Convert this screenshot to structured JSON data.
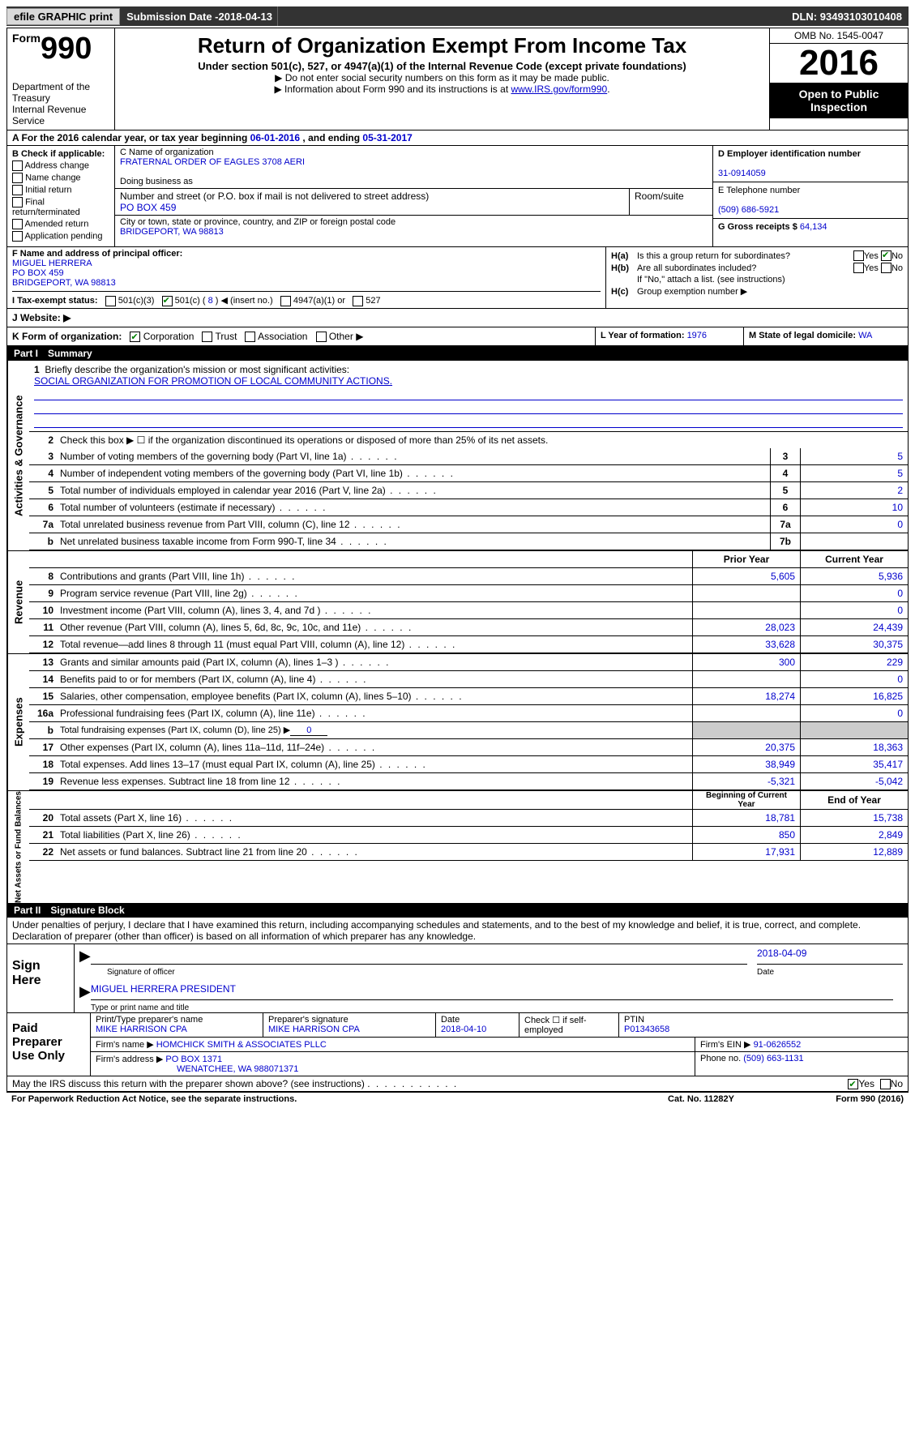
{
  "topbar": {
    "efile": "efile GRAPHIC print",
    "submission_label": "Submission Date - ",
    "submission_date": "2018-04-13",
    "dln_label": "DLN: ",
    "dln": "93493103010408"
  },
  "header": {
    "form_label": "Form",
    "form_num": "990",
    "dept": "Department of the Treasury\nInternal Revenue Service",
    "title": "Return of Organization Exempt From Income Tax",
    "sub": "Under section 501(c), 527, or 4947(a)(1) of the Internal Revenue Code (except private foundations)",
    "note1": "▶ Do not enter social security numbers on this form as it may be made public.",
    "note2": "▶ Information about Form 990 and its instructions is at ",
    "note2_link": "www.IRS.gov/form990",
    "omb": "OMB No. 1545-0047",
    "year": "2016",
    "open": "Open to Public Inspection"
  },
  "row_a": {
    "text": "A For the 2016 calendar year, or tax year beginning ",
    "begin": "06-01-2016",
    "mid": " , and ending ",
    "end": "05-31-2017"
  },
  "col_b": {
    "hdr": "B Check if applicable:",
    "items": [
      "Address change",
      "Name change",
      "Initial return",
      "Final return/terminated",
      "Amended return",
      "Application pending"
    ]
  },
  "col_c": {
    "name_label": "C Name of organization",
    "name": "FRATERNAL ORDER OF EAGLES 3708 AERI",
    "dba_label": "Doing business as",
    "street_label": "Number and street (or P.O. box if mail is not delivered to street address)",
    "room_label": "Room/suite",
    "street": "PO BOX 459",
    "city_label": "City or town, state or province, country, and ZIP or foreign postal code",
    "city": "BRIDGEPORT, WA  98813"
  },
  "col_d": {
    "ein_label": "D Employer identification number",
    "ein": "31-0914059",
    "phone_label": "E Telephone number",
    "phone": "(509) 686-5921",
    "gross_label": "G Gross receipts $ ",
    "gross": "64,134"
  },
  "row_f": {
    "label": "F  Name and address of principal officer:",
    "name": "MIGUEL HERRERA",
    "street": "PO BOX 459",
    "city": "BRIDGEPORT, WA  98813"
  },
  "row_h": {
    "ha_label": "H(a)",
    "ha_text": "Is this a group return for subordinates?",
    "hb_label": "H(b)",
    "hb_text": "Are all subordinates included?",
    "hb_note": "If \"No,\" attach a list. (see instructions)",
    "hc_label": "H(c)",
    "hc_text": "Group exemption number ▶"
  },
  "row_i": {
    "label": "I   Tax-exempt status:",
    "opt1": "501(c)(3)",
    "opt2": "501(c) ( ",
    "opt2_val": "8",
    "opt2_suffix": " ) ◀ (insert no.)",
    "opt3": "4947(a)(1) or",
    "opt4": "527"
  },
  "row_j": {
    "label": "J   Website: ▶"
  },
  "row_k": {
    "label": "K Form of organization:",
    "opts": [
      "Corporation",
      "Trust",
      "Association",
      "Other ▶"
    ],
    "l_label": "L Year of formation: ",
    "l_val": "1976",
    "m_label": "M State of legal domicile: ",
    "m_val": "WA"
  },
  "part1": {
    "hdr": "Part I",
    "title": "Summary"
  },
  "mission_label": "Briefly describe the organization's mission or most significant activities:",
  "mission": "SOCIAL ORGANIZATION FOR PROMOTION OF LOCAL COMMUNITY ACTIONS.",
  "line2": "Check this box ▶ ☐  if the organization discontinued its operations or disposed of more than 25% of its net assets.",
  "gov_lines": [
    {
      "n": "3",
      "desc": "Number of voting members of the governing body (Part VI, line 1a)",
      "box": "3",
      "val": "5"
    },
    {
      "n": "4",
      "desc": "Number of independent voting members of the governing body (Part VI, line 1b)",
      "box": "4",
      "val": "5"
    },
    {
      "n": "5",
      "desc": "Total number of individuals employed in calendar year 2016 (Part V, line 2a)",
      "box": "5",
      "val": "2"
    },
    {
      "n": "6",
      "desc": "Total number of volunteers (estimate if necessary)",
      "box": "6",
      "val": "10"
    },
    {
      "n": "7a",
      "desc": "Total unrelated business revenue from Part VIII, column (C), line 12",
      "box": "7a",
      "val": "0"
    },
    {
      "n": "b",
      "desc": "Net unrelated business taxable income from Form 990-T, line 34",
      "box": "7b",
      "val": ""
    }
  ],
  "col_hdrs": {
    "prior": "Prior Year",
    "current": "Current Year"
  },
  "rev_lines": [
    {
      "n": "8",
      "desc": "Contributions and grants (Part VIII, line 1h)",
      "p": "5,605",
      "c": "5,936"
    },
    {
      "n": "9",
      "desc": "Program service revenue (Part VIII, line 2g)",
      "p": "",
      "c": "0"
    },
    {
      "n": "10",
      "desc": "Investment income (Part VIII, column (A), lines 3, 4, and 7d )",
      "p": "",
      "c": "0"
    },
    {
      "n": "11",
      "desc": "Other revenue (Part VIII, column (A), lines 5, 6d, 8c, 9c, 10c, and 11e)",
      "p": "28,023",
      "c": "24,439"
    },
    {
      "n": "12",
      "desc": "Total revenue—add lines 8 through 11 (must equal Part VIII, column (A), line 12)",
      "p": "33,628",
      "c": "30,375"
    }
  ],
  "exp_lines": [
    {
      "n": "13",
      "desc": "Grants and similar amounts paid (Part IX, column (A), lines 1–3 )",
      "p": "300",
      "c": "229"
    },
    {
      "n": "14",
      "desc": "Benefits paid to or for members (Part IX, column (A), line 4)",
      "p": "",
      "c": "0"
    },
    {
      "n": "15",
      "desc": "Salaries, other compensation, employee benefits (Part IX, column (A), lines 5–10)",
      "p": "18,274",
      "c": "16,825"
    },
    {
      "n": "16a",
      "desc": "Professional fundraising fees (Part IX, column (A), line 11e)",
      "p": "",
      "c": "0"
    },
    {
      "n": "b",
      "desc": "Total fundraising expenses (Part IX, column (D), line 25) ▶",
      "p": "shaded",
      "c": "shaded",
      "inline": "0"
    },
    {
      "n": "17",
      "desc": "Other expenses (Part IX, column (A), lines 11a–11d, 11f–24e)",
      "p": "20,375",
      "c": "18,363"
    },
    {
      "n": "18",
      "desc": "Total expenses. Add lines 13–17 (must equal Part IX, column (A), line 25)",
      "p": "38,949",
      "c": "35,417"
    },
    {
      "n": "19",
      "desc": "Revenue less expenses. Subtract line 18 from line 12",
      "p": "-5,321",
      "c": "-5,042"
    }
  ],
  "na_hdrs": {
    "begin": "Beginning of Current Year",
    "end": "End of Year"
  },
  "na_lines": [
    {
      "n": "20",
      "desc": "Total assets (Part X, line 16)",
      "p": "18,781",
      "c": "15,738"
    },
    {
      "n": "21",
      "desc": "Total liabilities (Part X, line 26)",
      "p": "850",
      "c": "2,849"
    },
    {
      "n": "22",
      "desc": "Net assets or fund balances. Subtract line 21 from line 20",
      "p": "17,931",
      "c": "12,889"
    }
  ],
  "vtabs": {
    "gov": "Activities & Governance",
    "rev": "Revenue",
    "exp": "Expenses",
    "na": "Net Assets or Fund Balances"
  },
  "part2": {
    "hdr": "Part II",
    "title": "Signature Block"
  },
  "perjury": "Under penalties of perjury, I declare that I have examined this return, including accompanying schedules and statements, and to the best of my knowledge and belief, it is true, correct, and complete. Declaration of preparer (other than officer) is based on all information of which preparer has any knowledge.",
  "sign": {
    "here": "Sign Here",
    "sig_label": "Signature of officer",
    "date_label": "Date",
    "date": "2018-04-09",
    "name": "MIGUEL HERRERA  PRESIDENT",
    "name_label": "Type or print name and title"
  },
  "preparer": {
    "left": "Paid Preparer Use Only",
    "print_label": "Print/Type preparer's name",
    "print_name": "MIKE HARRISON CPA",
    "sig_label": "Preparer's signature",
    "sig_name": "MIKE HARRISON CPA",
    "date_label": "Date",
    "date": "2018-04-10",
    "self_label": "Check ☐ if self-employed",
    "ptin_label": "PTIN",
    "ptin": "P01343658",
    "firm_name_label": "Firm's name    ▶ ",
    "firm_name": "HOMCHICK SMITH & ASSOCIATES PLLC",
    "firm_ein_label": "Firm's EIN ▶ ",
    "firm_ein": "91-0626552",
    "firm_addr_label": "Firm's address ▶ ",
    "firm_addr": "PO BOX 1371",
    "firm_city": "WENATCHEE, WA  988071371",
    "phone_label": "Phone no. ",
    "phone": "(509) 663-1131"
  },
  "discuss": "May the IRS discuss this return with the preparer shown above? (see instructions)",
  "footer": {
    "left": "For Paperwork Reduction Act Notice, see the separate instructions.",
    "mid": "Cat. No. 11282Y",
    "right": "Form 990 (2016)"
  }
}
